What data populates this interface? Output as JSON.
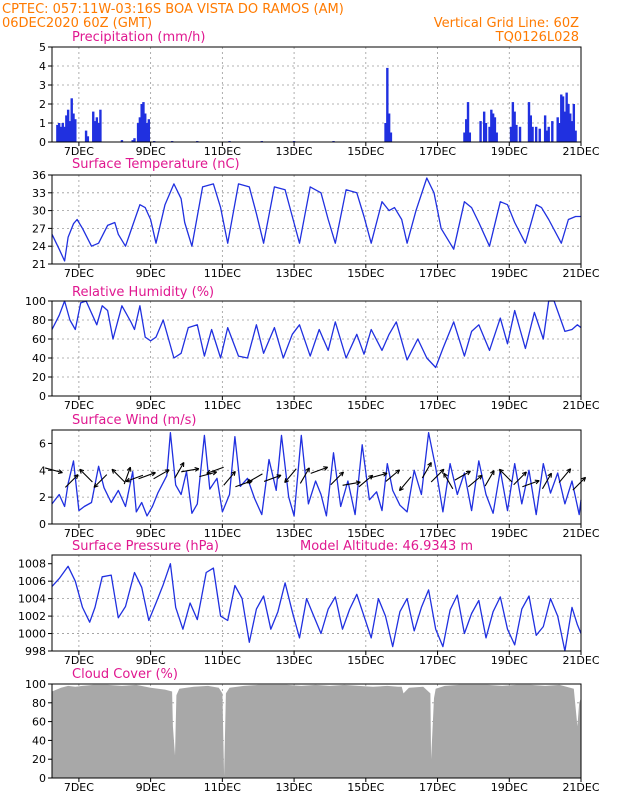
{
  "header": {
    "line1_left": "CPTEC:   057:11W-03:16S   BOA VISTA DO RAMOS (AM)",
    "line2_left": "06DEC2020 60Z (GMT)",
    "line2_right": "Vertical Grid Line: 60Z",
    "line3_right": "TQ0126L028"
  },
  "colors": {
    "header": "#ff7a00",
    "title": "#e01890",
    "line": "#2030e0",
    "cloud": "#a8a8a8"
  },
  "chart_data": [
    {
      "type": "bar",
      "title": "Precipitation (mm/h)",
      "ylim": [
        0,
        5
      ],
      "yticks": [
        0,
        1,
        2,
        3,
        4,
        5
      ],
      "x_tick_labels": [
        "7DEC",
        "9DEC",
        "11DEC",
        "13DEC",
        "15DEC",
        "17DEC",
        "19DEC",
        "21DEC"
      ],
      "x_tick_days": [
        7,
        9,
        11,
        13,
        15,
        17,
        19,
        21
      ],
      "x_range_days": [
        6.25,
        21.0
      ],
      "bars": [
        [
          6.4,
          0.9
        ],
        [
          6.45,
          1.0
        ],
        [
          6.5,
          0.8
        ],
        [
          6.55,
          1.0
        ],
        [
          6.6,
          0.8
        ],
        [
          6.65,
          1.4
        ],
        [
          6.7,
          1.7
        ],
        [
          6.75,
          1.1
        ],
        [
          6.8,
          2.3
        ],
        [
          6.85,
          1.5
        ],
        [
          6.9,
          1.2
        ],
        [
          7.2,
          0.6
        ],
        [
          7.25,
          0.3
        ],
        [
          7.4,
          1.6
        ],
        [
          7.45,
          1.1
        ],
        [
          7.5,
          1.3
        ],
        [
          7.55,
          1.0
        ],
        [
          7.6,
          1.7
        ],
        [
          8.2,
          0.1
        ],
        [
          8.5,
          0.1
        ],
        [
          8.55,
          0.2
        ],
        [
          8.65,
          1.0
        ],
        [
          8.7,
          1.3
        ],
        [
          8.75,
          2.0
        ],
        [
          8.8,
          2.1
        ],
        [
          8.85,
          1.5
        ],
        [
          8.9,
          1.0
        ],
        [
          8.95,
          1.2
        ],
        [
          9.1,
          0.05
        ],
        [
          9.6,
          0.05
        ],
        [
          10.3,
          0.05
        ],
        [
          11.2,
          0.05
        ],
        [
          12.1,
          0.05
        ],
        [
          13.0,
          0.05
        ],
        [
          14.1,
          0.05
        ],
        [
          15.55,
          1.0
        ],
        [
          15.6,
          3.9
        ],
        [
          15.65,
          1.5
        ],
        [
          15.7,
          0.5
        ],
        [
          17.75,
          0.5
        ],
        [
          17.8,
          1.2
        ],
        [
          17.85,
          2.1
        ],
        [
          17.9,
          0.5
        ],
        [
          18.2,
          1.1
        ],
        [
          18.3,
          1.6
        ],
        [
          18.35,
          1.0
        ],
        [
          18.45,
          0.8
        ],
        [
          18.5,
          1.7
        ],
        [
          18.55,
          1.5
        ],
        [
          18.6,
          1.3
        ],
        [
          18.65,
          0.5
        ],
        [
          19.05,
          0.8
        ],
        [
          19.1,
          2.1
        ],
        [
          19.15,
          1.6
        ],
        [
          19.2,
          0.9
        ],
        [
          19.3,
          0.8
        ],
        [
          19.55,
          2.1
        ],
        [
          19.6,
          1.4
        ],
        [
          19.65,
          0.8
        ],
        [
          19.75,
          0.8
        ],
        [
          19.85,
          0.7
        ],
        [
          20.0,
          1.4
        ],
        [
          20.05,
          0.6
        ],
        [
          20.1,
          0.8
        ],
        [
          20.2,
          1.1
        ],
        [
          20.35,
          1.3
        ],
        [
          20.4,
          1.0
        ],
        [
          20.45,
          2.5
        ],
        [
          20.5,
          2.4
        ],
        [
          20.55,
          1.6
        ],
        [
          20.6,
          2.6
        ],
        [
          20.65,
          2.0
        ],
        [
          20.7,
          1.5
        ],
        [
          20.75,
          1.1
        ],
        [
          20.8,
          2.0
        ],
        [
          20.85,
          0.6
        ]
      ]
    },
    {
      "type": "line",
      "title": "Surface Temperature (nC)",
      "ylim": [
        21,
        36
      ],
      "yticks": [
        21,
        24,
        27,
        30,
        33,
        36
      ],
      "x_tick_labels": [
        "7DEC",
        "9DEC",
        "11DEC",
        "13DEC",
        "15DEC",
        "17DEC",
        "19DEC",
        "21DEC"
      ],
      "x_range_days": [
        6.25,
        21.0
      ],
      "x": [
        6.25,
        6.45,
        6.6,
        6.7,
        6.85,
        6.95,
        7.1,
        7.35,
        7.55,
        7.8,
        8.0,
        8.1,
        8.3,
        8.5,
        8.7,
        8.85,
        9.0,
        9.15,
        9.4,
        9.65,
        9.85,
        9.95,
        10.15,
        10.45,
        10.75,
        10.95,
        11.15,
        11.45,
        11.75,
        11.95,
        12.15,
        12.45,
        12.75,
        12.95,
        13.15,
        13.45,
        13.75,
        13.95,
        14.15,
        14.45,
        14.75,
        14.95,
        15.15,
        15.45,
        15.65,
        15.8,
        16.0,
        16.15,
        16.4,
        16.7,
        16.9,
        17.1,
        17.45,
        17.75,
        17.95,
        18.15,
        18.45,
        18.75,
        18.95,
        19.15,
        19.45,
        19.75,
        19.9,
        20.1,
        20.45,
        20.65,
        20.85,
        21.0
      ],
      "y": [
        26,
        23.5,
        21.5,
        25.5,
        27.8,
        28.5,
        27,
        24,
        24.5,
        27.5,
        28,
        26,
        24,
        27.5,
        31,
        30.5,
        28.5,
        24.5,
        31,
        34.5,
        32,
        28,
        24,
        34,
        34.5,
        30.5,
        24.5,
        34.5,
        34,
        29.5,
        24.5,
        34,
        33.5,
        29,
        24.5,
        34,
        33,
        28.5,
        24.5,
        33.5,
        33,
        29,
        24.5,
        31.5,
        30,
        30.5,
        28.5,
        24.5,
        30,
        35.5,
        33,
        27,
        23.5,
        31.5,
        30.5,
        28,
        24,
        31.5,
        31,
        28,
        24.5,
        31,
        30.5,
        28.5,
        24.5,
        28.5,
        29,
        29
      ]
    },
    {
      "type": "line",
      "title": "Relative Humidity (%)",
      "ylim": [
        0,
        100
      ],
      "yticks": [
        0,
        20,
        40,
        60,
        80,
        100
      ],
      "x_tick_labels": [
        "7DEC",
        "9DEC",
        "11DEC",
        "13DEC",
        "15DEC",
        "17DEC",
        "19DEC",
        "21DEC"
      ],
      "x_range_days": [
        6.25,
        21.0
      ],
      "x": [
        6.25,
        6.45,
        6.6,
        6.75,
        6.9,
        7.05,
        7.2,
        7.5,
        7.65,
        7.8,
        7.95,
        8.2,
        8.45,
        8.55,
        8.7,
        8.85,
        9.0,
        9.15,
        9.35,
        9.65,
        9.85,
        10.05,
        10.3,
        10.5,
        10.7,
        10.95,
        11.15,
        11.45,
        11.7,
        11.95,
        12.15,
        12.45,
        12.7,
        12.95,
        13.15,
        13.45,
        13.7,
        13.95,
        14.15,
        14.45,
        14.75,
        14.95,
        15.15,
        15.45,
        15.65,
        15.85,
        16.15,
        16.45,
        16.7,
        16.95,
        17.15,
        17.45,
        17.75,
        17.95,
        18.15,
        18.45,
        18.75,
        18.95,
        19.15,
        19.45,
        19.7,
        19.95,
        20.1,
        20.25,
        20.55,
        20.75,
        20.9,
        21.0
      ],
      "y": [
        70,
        85,
        100,
        80,
        70,
        98,
        100,
        75,
        95,
        90,
        60,
        95,
        78,
        70,
        95,
        62,
        58,
        62,
        80,
        40,
        45,
        72,
        75,
        42,
        70,
        40,
        72,
        42,
        40,
        75,
        45,
        72,
        40,
        65,
        75,
        42,
        70,
        48,
        78,
        40,
        65,
        44,
        70,
        48,
        65,
        78,
        38,
        60,
        40,
        30,
        50,
        78,
        42,
        68,
        75,
        48,
        82,
        55,
        90,
        50,
        88,
        60,
        100,
        100,
        68,
        70,
        75,
        72
      ]
    },
    {
      "type": "line",
      "title": "Surface Wind (m/s)",
      "ylim": [
        0,
        7
      ],
      "yticks": [
        0,
        2,
        4,
        6
      ],
      "x_tick_labels": [
        "7DEC",
        "9DEC",
        "11DEC",
        "13DEC",
        "15DEC",
        "17DEC",
        "19DEC",
        "21DEC"
      ],
      "x_range_days": [
        6.25,
        21.0
      ],
      "x": [
        6.25,
        6.45,
        6.6,
        6.7,
        6.85,
        7.0,
        7.15,
        7.35,
        7.55,
        7.7,
        7.9,
        8.1,
        8.3,
        8.5,
        8.6,
        8.75,
        8.9,
        9.05,
        9.2,
        9.45,
        9.55,
        9.7,
        9.85,
        10.0,
        10.15,
        10.3,
        10.5,
        10.65,
        10.85,
        11.0,
        11.2,
        11.35,
        11.5,
        11.7,
        11.9,
        12.1,
        12.3,
        12.5,
        12.65,
        12.85,
        13.0,
        13.2,
        13.4,
        13.6,
        13.75,
        13.9,
        14.1,
        14.3,
        14.5,
        14.7,
        14.9,
        15.1,
        15.3,
        15.45,
        15.6,
        15.75,
        15.95,
        16.15,
        16.35,
        16.55,
        16.75,
        16.95,
        17.15,
        17.35,
        17.55,
        17.75,
        17.95,
        18.15,
        18.35,
        18.55,
        18.75,
        18.95,
        19.15,
        19.35,
        19.55,
        19.75,
        19.95,
        20.15,
        20.35,
        20.55,
        20.75,
        20.95,
        21.0
      ],
      "y": [
        1.5,
        2.2,
        1.3,
        3.0,
        4.7,
        1.0,
        1.3,
        1.6,
        4.3,
        2.7,
        1.6,
        2.5,
        1.3,
        3.9,
        0.9,
        1.6,
        0.6,
        1.3,
        2.3,
        3.6,
        6.8,
        2.9,
        2.2,
        3.9,
        0.8,
        1.5,
        6.6,
        2.6,
        3.4,
        0.9,
        2.2,
        6.5,
        2.8,
        3.4,
        1.9,
        0.7,
        4.8,
        2.5,
        6.6,
        2.0,
        0.6,
        6.6,
        1.5,
        3.2,
        2.2,
        0.6,
        5.3,
        1.3,
        3.2,
        0.7,
        5.9,
        1.8,
        2.4,
        1.0,
        4.5,
        2.5,
        1.4,
        0.9,
        4.0,
        2.2,
        6.8,
        4.2,
        0.9,
        4.5,
        2.2,
        3.8,
        1.0,
        4.7,
        2.2,
        0.8,
        4.0,
        1.0,
        4.5,
        1.5,
        4.0,
        0.7,
        4.5,
        2.3,
        3.8,
        1.5,
        3.2,
        0.7,
        1.8
      ]
    },
    {
      "type": "line",
      "title": "Surface Pressure (hPa)",
      "subtitle": "Model Altitude: 46.9343 m",
      "ylim": [
        998,
        1009
      ],
      "yticks": [
        998,
        1000,
        1002,
        1004,
        1006,
        1008
      ],
      "x_tick_labels": [
        "7DEC",
        "9DEC",
        "11DEC",
        "13DEC",
        "15DEC",
        "17DEC",
        "19DEC",
        "21DEC"
      ],
      "x_range_days": [
        6.25,
        21.0
      ],
      "x": [
        6.25,
        6.45,
        6.7,
        6.9,
        7.1,
        7.3,
        7.45,
        7.65,
        7.9,
        8.1,
        8.3,
        8.55,
        8.75,
        8.95,
        9.15,
        9.35,
        9.55,
        9.7,
        9.9,
        10.1,
        10.3,
        10.55,
        10.75,
        10.95,
        11.15,
        11.35,
        11.55,
        11.75,
        11.95,
        12.15,
        12.35,
        12.55,
        12.75,
        12.95,
        13.15,
        13.35,
        13.55,
        13.75,
        13.95,
        14.15,
        14.35,
        14.55,
        14.75,
        14.95,
        15.15,
        15.35,
        15.55,
        15.75,
        15.95,
        16.15,
        16.35,
        16.55,
        16.75,
        16.95,
        17.15,
        17.35,
        17.55,
        17.75,
        17.95,
        18.15,
        18.35,
        18.55,
        18.75,
        18.95,
        19.15,
        19.35,
        19.55,
        19.75,
        19.95,
        20.15,
        20.35,
        20.55,
        20.75,
        20.9,
        21.0
      ],
      "y": [
        1005.4,
        1006.3,
        1007.7,
        1006.0,
        1003.0,
        1001.3,
        1003.0,
        1006.5,
        1006.7,
        1001.8,
        1003.1,
        1007.0,
        1005.3,
        1001.5,
        1003.5,
        1005.6,
        1008.0,
        1003.0,
        1000.5,
        1003.5,
        1001.6,
        1007.0,
        1007.5,
        1002.0,
        1001.5,
        1005.5,
        1004.0,
        999.0,
        1002.8,
        1004.3,
        1000.5,
        1002.5,
        1005.8,
        1002.5,
        999.5,
        1004.0,
        1002.0,
        1000.0,
        1002.8,
        1004.2,
        1000.5,
        1002.8,
        1004.5,
        1002.0,
        999.5,
        1004.0,
        1002.0,
        998.5,
        1002.5,
        1004.0,
        1000.3,
        1003.0,
        1005.0,
        1000.5,
        998.5,
        1002.7,
        1004.4,
        1000.0,
        1002.3,
        1003.8,
        999.5,
        1002.5,
        1004.2,
        1000.5,
        998.7,
        1002.8,
        1004.3,
        999.8,
        1000.8,
        1004.0,
        1002.0,
        998.0,
        1003.0,
        1001.0,
        1000.0
      ]
    },
    {
      "type": "area",
      "title": "Cloud Cover (%)",
      "ylim": [
        0,
        100
      ],
      "yticks": [
        0,
        20,
        40,
        60,
        80,
        100
      ],
      "x_tick_labels": [
        "7DEC",
        "9DEC",
        "11DEC",
        "13DEC",
        "15DEC",
        "17DEC",
        "19DEC",
        "21DEC"
      ],
      "x_range_days": [
        6.25,
        21.0
      ],
      "x": [
        6.25,
        6.5,
        6.7,
        6.9,
        7.1,
        7.4,
        7.8,
        8.2,
        8.6,
        9.0,
        9.4,
        9.6,
        9.62,
        9.68,
        9.72,
        9.8,
        10.2,
        10.6,
        10.9,
        11.0,
        11.05,
        11.1,
        11.2,
        11.6,
        12.0,
        12.4,
        12.8,
        13.2,
        13.6,
        14.0,
        14.4,
        14.8,
        15.2,
        15.6,
        15.9,
        16.0,
        16.05,
        16.2,
        16.6,
        16.8,
        16.82,
        16.9,
        16.95,
        17.2,
        17.6,
        18.0,
        18.4,
        18.8,
        19.2,
        19.6,
        20.0,
        20.4,
        20.8,
        20.9,
        20.95,
        21.0
      ],
      "y": [
        92,
        96,
        98,
        97,
        98,
        99,
        99,
        98,
        99,
        96,
        94,
        92,
        55,
        24,
        88,
        95,
        97,
        98,
        96,
        90,
        2,
        90,
        96,
        98,
        99,
        99,
        99,
        98,
        99,
        98,
        99,
        98,
        97,
        98,
        97,
        97,
        90,
        96,
        97,
        90,
        20,
        85,
        95,
        98,
        99,
        99,
        99,
        98,
        99,
        99,
        98,
        99,
        95,
        55,
        80,
        85
      ]
    }
  ],
  "wind_vectors": [
    {
      "day": 6.3,
      "mag": 4.0,
      "angle": -15
    },
    {
      "day": 6.8,
      "mag": 3.2,
      "angle": 45
    },
    {
      "day": 7.2,
      "mag": 3.6,
      "angle": 135
    },
    {
      "day": 7.6,
      "mag": 3.2,
      "angle": 225
    },
    {
      "day": 8.1,
      "mag": 3.6,
      "angle": 135
    },
    {
      "day": 8.35,
      "mag": 3.6,
      "angle": 70
    },
    {
      "day": 8.55,
      "mag": 3.4,
      "angle": 200
    },
    {
      "day": 8.9,
      "mag": 3.6,
      "angle": 20
    },
    {
      "day": 9.3,
      "mag": 3.7,
      "angle": 30
    },
    {
      "day": 9.8,
      "mag": 4.0,
      "angle": 60
    },
    {
      "day": 10.1,
      "mag": 4.0,
      "angle": 10
    },
    {
      "day": 10.6,
      "mag": 3.7,
      "angle": 15
    },
    {
      "day": 10.8,
      "mag": 4.0,
      "angle": 200
    },
    {
      "day": 11.2,
      "mag": 3.4,
      "angle": 50
    },
    {
      "day": 11.6,
      "mag": 3.0,
      "angle": 20
    },
    {
      "day": 11.9,
      "mag": 3.4,
      "angle": 210
    },
    {
      "day": 12.4,
      "mag": 3.4,
      "angle": 20
    },
    {
      "day": 12.9,
      "mag": 3.6,
      "angle": 230
    },
    {
      "day": 13.3,
      "mag": 3.6,
      "angle": 60
    },
    {
      "day": 13.7,
      "mag": 4.0,
      "angle": 20
    },
    {
      "day": 14.2,
      "mag": 3.4,
      "angle": 45
    },
    {
      "day": 14.6,
      "mag": 3.0,
      "angle": 10
    },
    {
      "day": 15.0,
      "mag": 3.2,
      "angle": 40
    },
    {
      "day": 15.35,
      "mag": 3.6,
      "angle": 15
    },
    {
      "day": 15.75,
      "mag": 3.6,
      "angle": 40
    },
    {
      "day": 16.1,
      "mag": 3.0,
      "angle": 230
    },
    {
      "day": 16.7,
      "mag": 4.0,
      "angle": 60
    },
    {
      "day": 17.0,
      "mag": 3.6,
      "angle": 45
    },
    {
      "day": 17.3,
      "mag": 3.2,
      "angle": 120
    },
    {
      "day": 17.7,
      "mag": 3.6,
      "angle": 30
    },
    {
      "day": 18.05,
      "mag": 3.2,
      "angle": 40
    },
    {
      "day": 18.45,
      "mag": 3.4,
      "angle": 60
    },
    {
      "day": 18.9,
      "mag": 3.6,
      "angle": 135
    },
    {
      "day": 19.3,
      "mag": 3.4,
      "angle": 45
    },
    {
      "day": 19.6,
      "mag": 3.0,
      "angle": 20
    },
    {
      "day": 20.05,
      "mag": 3.2,
      "angle": 60
    },
    {
      "day": 20.55,
      "mag": 3.6,
      "angle": 50
    },
    {
      "day": 20.95,
      "mag": 3.0,
      "angle": 45
    }
  ]
}
